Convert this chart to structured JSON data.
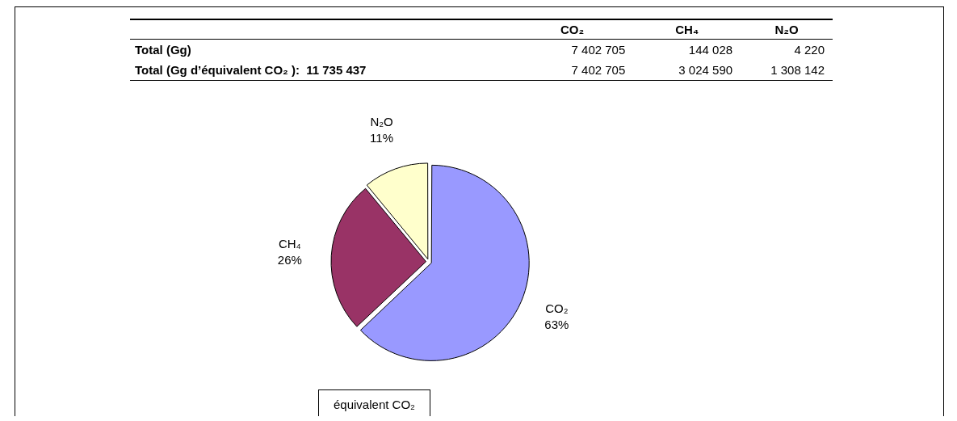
{
  "chart_data": [
    {
      "type": "other",
      "categories": [
        "CO₂",
        "CH₄",
        "N₂O"
      ],
      "data_labels": true,
      "series": [
        {
          "name": "Total (Gg)",
          "values": [
            7402705,
            144028,
            4220
          ]
        },
        {
          "name": "Total (Gg d’équivalent CO₂ ):  11 735 437",
          "values": [
            7402705,
            3024590,
            1308142
          ]
        }
      ]
    },
    {
      "type": "pie",
      "categories": [
        "CO₂",
        "CH₄",
        "N₂O"
      ],
      "values": [
        63,
        26,
        11
      ],
      "value_labels": [
        "63%",
        "26%",
        "11%"
      ],
      "colors": [
        "#9999ff",
        "#993366",
        "#ffffcc"
      ],
      "legend": false,
      "annotations": [
        "équivalent CO₂"
      ]
    }
  ]
}
